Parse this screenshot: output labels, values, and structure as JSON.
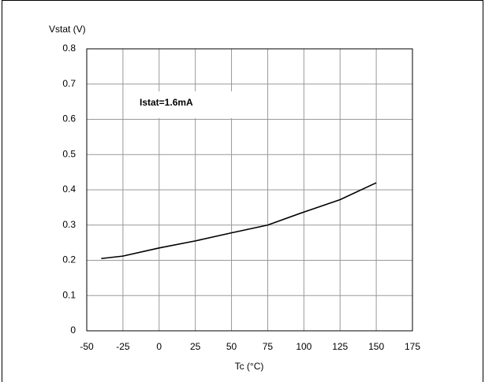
{
  "chart_data": {
    "type": "line",
    "annotation": "Istat=1.6mA",
    "y_axis_label": "Vstat (V)",
    "x_axis_label": "Tc (°C)",
    "x": [
      -40,
      -25,
      0,
      25,
      50,
      75,
      100,
      125,
      150
    ],
    "series": [
      {
        "name": "Istat=1.6mA",
        "color": "#000000",
        "values": [
          0.205,
          0.212,
          0.235,
          0.255,
          0.278,
          0.3,
          0.337,
          0.372,
          0.42
        ]
      }
    ],
    "xlim": [
      -50,
      175
    ],
    "xticks": [
      -50,
      -25,
      0,
      25,
      50,
      75,
      100,
      125,
      150,
      175
    ],
    "ylim": [
      0,
      0.8
    ],
    "yticks": [
      0,
      0.1,
      0.2,
      0.3,
      0.4,
      0.5,
      0.6,
      0.7,
      0.8
    ],
    "grid": true
  }
}
